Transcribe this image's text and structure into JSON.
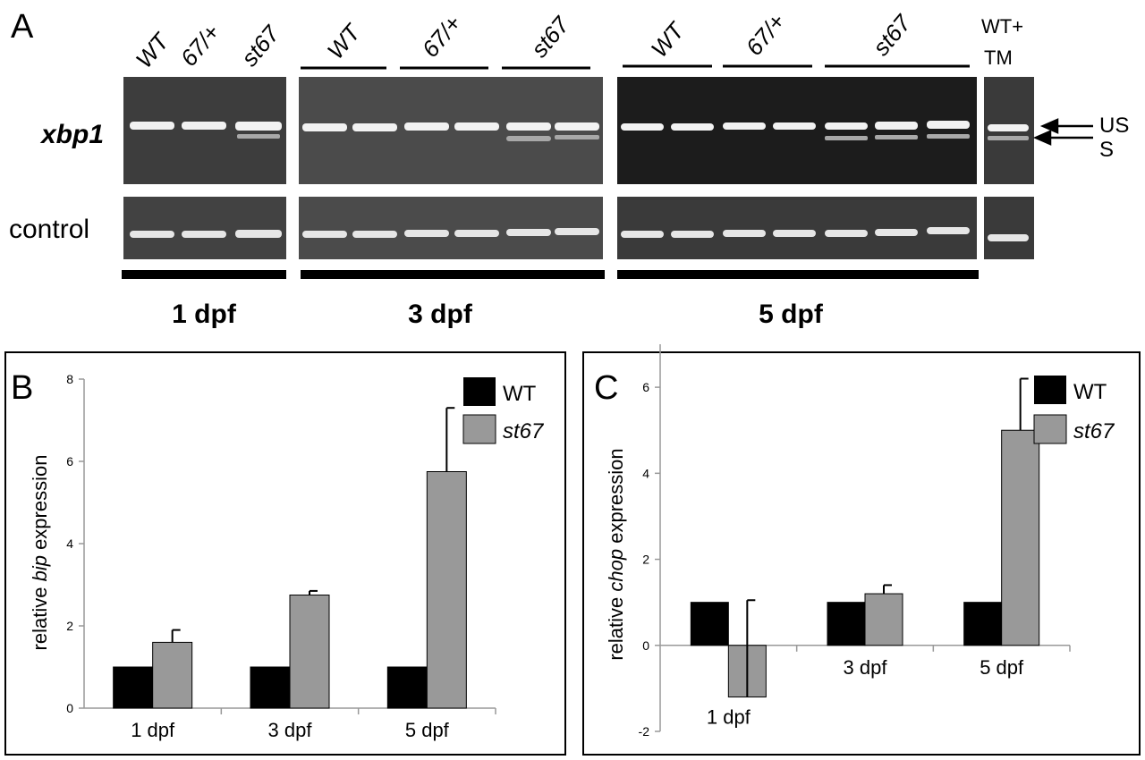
{
  "panel_a": {
    "label": "A",
    "row_labels": {
      "xbp1": "xbp1",
      "control": "control"
    },
    "lane_labels": {
      "p1": [
        "WT",
        "67/+",
        "st67"
      ],
      "p2": [
        "WT",
        "67/+",
        "st67"
      ],
      "p3": [
        "WT",
        "67/+",
        "st67"
      ],
      "tm_line1": "WT+",
      "tm_line2": "TM"
    },
    "band_labels": {
      "unspliced": "US",
      "spliced": "S"
    },
    "stage_labels": [
      "1 dpf",
      "3 dpf",
      "5 dpf"
    ],
    "gel_colors": {
      "light": "#4a4a4a",
      "dark": "#1c1c1c",
      "band": "#f2f2f2",
      "faint": "#a8a8a8"
    }
  },
  "panel_b": {
    "label": "B",
    "ylabel_pre": "relative ",
    "ylabel_gene": "bip",
    "ylabel_post": " expression",
    "legend": {
      "wt": "WT",
      "mut": "st67"
    }
  },
  "panel_c": {
    "label": "C",
    "ylabel_pre": "relative ",
    "ylabel_gene": "chop",
    "ylabel_post": " expression",
    "legend": {
      "wt": "WT",
      "mut": "st67"
    }
  },
  "chart_data": [
    {
      "panel": "B",
      "type": "bar",
      "categories": [
        "1 dpf",
        "3 dpf",
        "5 dpf"
      ],
      "series": [
        {
          "name": "WT",
          "values": [
            1,
            1,
            1
          ],
          "color": "#000000"
        },
        {
          "name": "st67",
          "values": [
            1.6,
            2.75,
            5.75
          ],
          "errors": [
            0.3,
            0.1,
            1.55
          ],
          "color": "#999999"
        }
      ],
      "ylim": [
        0,
        8
      ],
      "yticks": [
        0,
        2,
        4,
        6,
        8
      ],
      "ylabel": "relative bip expression",
      "legend": "top-right",
      "grid": false
    },
    {
      "panel": "C",
      "type": "bar",
      "categories": [
        "1 dpf",
        "3 dpf",
        "5 dpf"
      ],
      "series": [
        {
          "name": "WT",
          "values": [
            1,
            1,
            1
          ],
          "color": "#000000"
        },
        {
          "name": "st67",
          "values": [
            -1.2,
            1.2,
            5.0
          ],
          "errors": [
            2.25,
            0.2,
            1.2
          ],
          "color": "#999999"
        }
      ],
      "ylim": [
        -2,
        7
      ],
      "yticks": [
        -2,
        0,
        2,
        4,
        6
      ],
      "ylabel": "relative chop expression",
      "legend": "top-right",
      "grid": false
    }
  ]
}
